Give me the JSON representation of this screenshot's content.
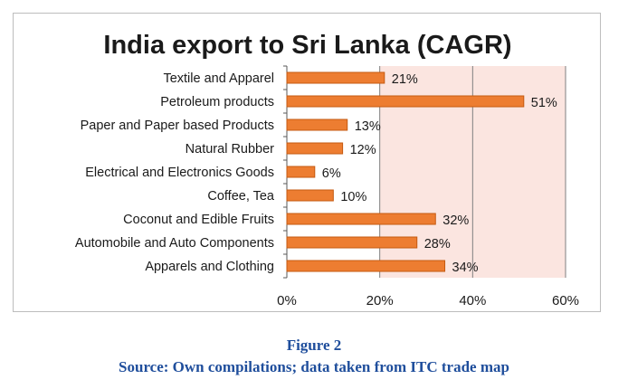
{
  "chart_data": {
    "type": "bar",
    "orientation": "horizontal",
    "title": "India export to Sri Lanka (CAGR)",
    "categories": [
      "Textile and Apparel",
      "Petroleum products",
      "Paper and Paper based Products",
      "Natural Rubber",
      "Electrical and Electronics Goods",
      "Coffee, Tea",
      "Coconut and Edible Fruits",
      "Automobile and Auto Components",
      "Apparels and Clothing"
    ],
    "values": [
      21,
      51,
      13,
      12,
      6,
      10,
      32,
      28,
      34
    ],
    "value_labels": [
      "21%",
      "51%",
      "13%",
      "12%",
      "6%",
      "10%",
      "32%",
      "28%",
      "34%"
    ],
    "xlim": [
      0,
      60
    ],
    "xticks": [
      0,
      20,
      40,
      60
    ],
    "xtick_labels": [
      "0%",
      "20%",
      "40%",
      "60%"
    ],
    "grid": true,
    "colors": {
      "bar_fill": "#ed7d31",
      "bar_stroke": "#c55a11",
      "plot_background": "#fbe5e0",
      "gridline": "#7f7f7f",
      "text": "#1a1a1a",
      "caption": "#1f4e9c"
    }
  },
  "caption": {
    "figure": "Figure 2",
    "source": "Source: Own compilations; data taken from ITC trade map"
  }
}
